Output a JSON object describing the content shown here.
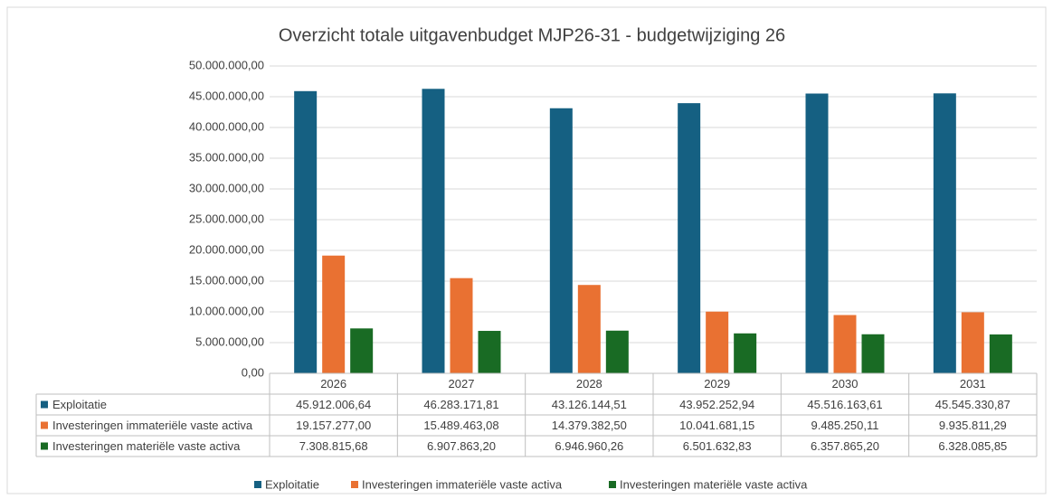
{
  "chart_data": {
    "type": "bar",
    "title": "Overzicht totale uitgavenbudget MJP26-31 - budgetwijziging 26",
    "categories": [
      "2026",
      "2027",
      "2028",
      "2029",
      "2030",
      "2031"
    ],
    "series": [
      {
        "name": "Exploitatie",
        "color": "#156082",
        "values": [
          45912006.64,
          46283171.81,
          43126144.51,
          43952252.94,
          45516163.61,
          45545330.87
        ],
        "value_labels": [
          "45.912.006,64",
          "46.283.171,81",
          "43.126.144,51",
          "43.952.252,94",
          "45.516.163,61",
          "45.545.330,87"
        ]
      },
      {
        "name": "Investeringen immateriële vaste activa",
        "color": "#e97132",
        "values": [
          19157277.0,
          15489463.08,
          14379382.5,
          10041681.15,
          9485250.11,
          9935811.29
        ],
        "value_labels": [
          "19.157.277,00",
          "15.489.463,08",
          "14.379.382,50",
          "10.041.681,15",
          "9.485.250,11",
          "9.935.811,29"
        ]
      },
      {
        "name": "Investeringen materiële vaste activa",
        "color": "#196b24",
        "values": [
          7308815.68,
          6907863.2,
          6946960.26,
          6501632.83,
          6357865.2,
          6328085.85
        ],
        "value_labels": [
          "7.308.815,68",
          "6.907.863,20",
          "6.946.960,26",
          "6.501.632,83",
          "6.357.865,20",
          "6.328.085,85"
        ]
      }
    ],
    "ylim": [
      0,
      50000000
    ],
    "yticks": [
      {
        "value": 0,
        "label": "0,00"
      },
      {
        "value": 5000000,
        "label": "5.000.000,00"
      },
      {
        "value": 10000000,
        "label": "10.000.000,00"
      },
      {
        "value": 15000000,
        "label": "15.000.000,00"
      },
      {
        "value": 20000000,
        "label": "20.000.000,00"
      },
      {
        "value": 25000000,
        "label": "25.000.000,00"
      },
      {
        "value": 30000000,
        "label": "30.000.000,00"
      },
      {
        "value": 35000000,
        "label": "35.000.000,00"
      },
      {
        "value": 40000000,
        "label": "40.000.000,00"
      },
      {
        "value": 45000000,
        "label": "45.000.000,00"
      },
      {
        "value": 50000000,
        "label": "50.000.000,00"
      }
    ],
    "grid": true,
    "legend": "bottom"
  }
}
